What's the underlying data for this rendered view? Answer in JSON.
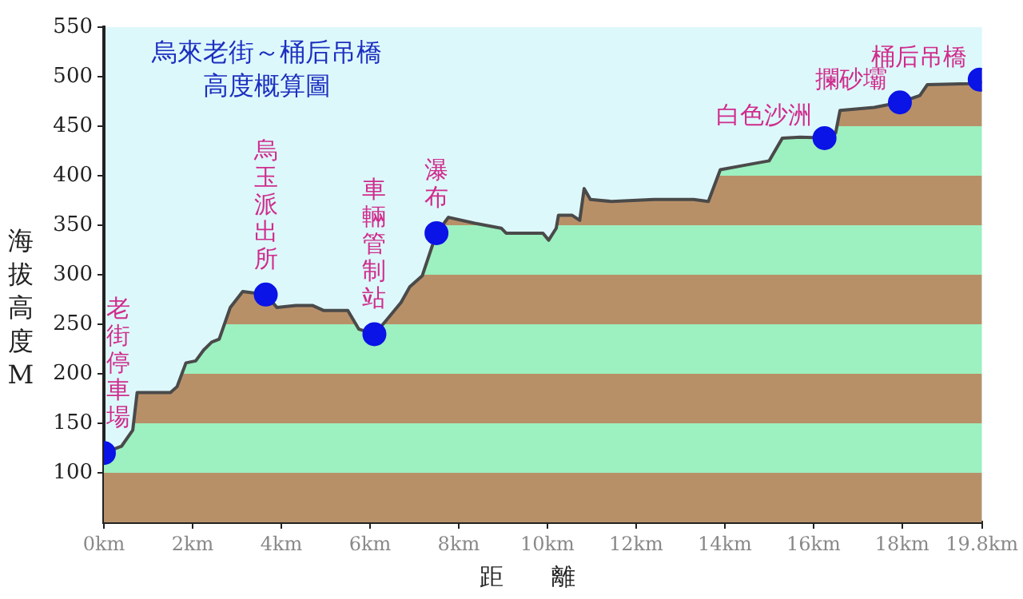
{
  "chart_data": {
    "type": "area",
    "title": "烏來老街～桶后吊橋",
    "subtitle": "高度概算圖",
    "xlabel": "距離",
    "ylabel": "海拔高度M",
    "xlim": [
      0,
      19.8
    ],
    "xticks": [
      {
        "value": 0,
        "label": "0km"
      },
      {
        "value": 2,
        "label": "2km"
      },
      {
        "value": 4,
        "label": "4km"
      },
      {
        "value": 6,
        "label": "6km"
      },
      {
        "value": 8,
        "label": "8km"
      },
      {
        "value": 10,
        "label": "10km"
      },
      {
        "value": 12,
        "label": "12km"
      },
      {
        "value": 14,
        "label": "14km"
      },
      {
        "value": 16,
        "label": "16km"
      },
      {
        "value": 18,
        "label": "18km"
      },
      {
        "value": 19.8,
        "label": "19.8km"
      }
    ],
    "ylim": [
      50,
      550
    ],
    "yticks": [
      100,
      150,
      200,
      250,
      300,
      350,
      400,
      450,
      500,
      550
    ],
    "legend": false,
    "series": [
      {
        "type": "area",
        "color": "#4a4a4a",
        "x": [
          0,
          0.4,
          0.65,
          0.75,
          1.5,
          1.65,
          1.85,
          2.07,
          2.25,
          2.43,
          2.6,
          2.85,
          3.13,
          3.65,
          3.9,
          4.33,
          4.7,
          4.95,
          5.5,
          5.75,
          6.1,
          6.35,
          6.7,
          6.9,
          7.18,
          7.5,
          7.77,
          8.36,
          8.96,
          9.07,
          9.9,
          10.03,
          10.2,
          10.25,
          10.56,
          10.73,
          10.83,
          10.97,
          11.45,
          12.4,
          13.3,
          13.63,
          13.9,
          14.5,
          15.0,
          15.3,
          15.7,
          16.25,
          16.5,
          16.6,
          17.37,
          17.6,
          17.95,
          18.4,
          18.57,
          19.5,
          19.8
        ],
        "values": [
          120,
          127,
          143,
          181,
          181,
          187,
          211,
          213,
          224,
          232,
          235,
          267,
          283,
          280,
          267,
          269,
          269,
          264,
          264,
          245,
          240,
          253,
          272,
          288,
          299,
          342,
          358,
          352,
          347,
          342,
          342,
          335,
          347,
          360,
          360,
          355,
          387,
          376,
          374,
          376,
          376,
          374,
          406,
          411,
          415,
          438,
          439,
          438,
          443,
          466,
          469,
          471,
          474,
          481,
          492,
          493,
          495
        ]
      },
      {
        "type": "scatter",
        "color": "#0a14e6",
        "marker": "circle",
        "x": [
          0,
          3.65,
          6.1,
          7.5,
          16.25,
          17.95,
          19.75
        ],
        "values": [
          120,
          280,
          240,
          342,
          438,
          474,
          497
        ]
      }
    ],
    "annotations": [
      {
        "text": "老街停車場",
        "x": 0,
        "y": 120
      },
      {
        "text": "烏玉派出所",
        "x": 3.65,
        "y": 280
      },
      {
        "text": "車輛管制站",
        "x": 6.1,
        "y": 240
      },
      {
        "text": "瀑布",
        "x": 7.5,
        "y": 342
      },
      {
        "text": "白色沙洲",
        "x": 16.25,
        "y": 438
      },
      {
        "text": "攔砂壩",
        "x": 17.95,
        "y": 474
      },
      {
        "text": "桶后吊橋",
        "x": 19.75,
        "y": 497
      }
    ]
  }
}
